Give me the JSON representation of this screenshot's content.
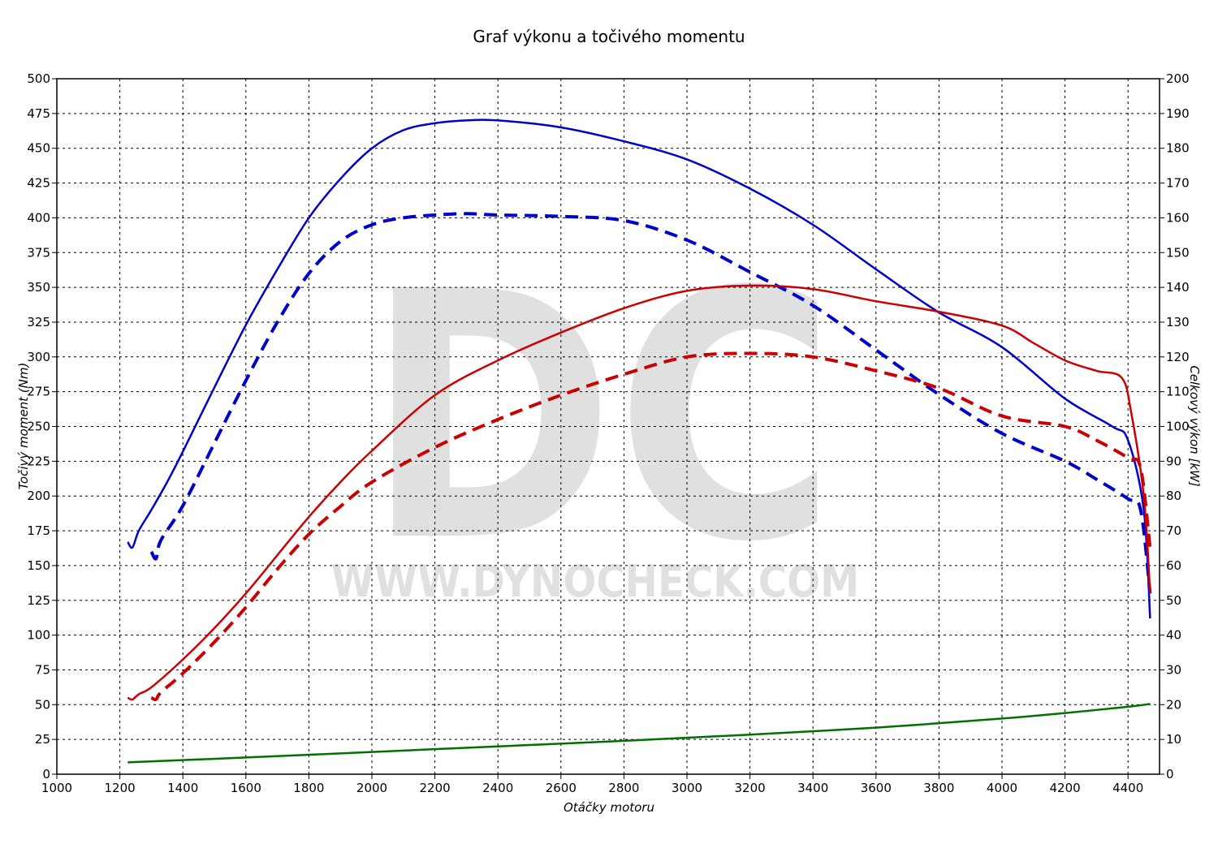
{
  "chart_data": {
    "type": "line",
    "title": "Graf výkonu a točivého momentu",
    "xlabel": "Otáčky motoru",
    "ylabel_left": "Točivý moment (Nm)",
    "ylabel_right": "Celkový výkon [kW]",
    "xlim": [
      1000,
      4500
    ],
    "ylim_left": [
      0,
      500
    ],
    "ylim_right": [
      0,
      200
    ],
    "x_ticks": [
      1000,
      1200,
      1400,
      1600,
      1800,
      2000,
      2200,
      2400,
      2600,
      2800,
      3000,
      3200,
      3400,
      3600,
      3800,
      4000,
      4200,
      4400
    ],
    "y_ticks_left": [
      0,
      25,
      50,
      75,
      100,
      125,
      150,
      175,
      200,
      225,
      250,
      275,
      300,
      325,
      350,
      375,
      400,
      425,
      450,
      475,
      500
    ],
    "y_ticks_right": [
      0,
      10,
      20,
      30,
      40,
      50,
      60,
      70,
      80,
      90,
      100,
      110,
      120,
      130,
      140,
      150,
      160,
      170,
      180,
      190,
      200
    ],
    "grid": true,
    "watermark": {
      "big": "DC",
      "url": "WWW.DYNOCHECK.COM"
    },
    "series": [
      {
        "color": "#0000cc",
        "dashed": false,
        "axis": "left",
        "x": [
          1225,
          1240,
          1260,
          1300,
          1350,
          1400,
          1500,
          1600,
          1700,
          1800,
          1900,
          2000,
          2100,
          2200,
          2300,
          2400,
          2600,
          2800,
          3000,
          3200,
          3400,
          3600,
          3800,
          4000,
          4200,
          4350,
          4400,
          4450,
          4470
        ],
        "y": [
          167,
          163,
          175,
          190,
          210,
          232,
          278,
          323,
          363,
          400,
          428,
          450,
          463,
          468,
          470,
          470,
          465,
          455,
          442,
          421,
          395,
          363,
          332,
          307,
          270,
          250,
          240,
          190,
          112
        ]
      },
      {
        "color": "#0000cc",
        "dashed": true,
        "axis": "left",
        "x": [
          1300,
          1315,
          1330,
          1400,
          1500,
          1600,
          1700,
          1800,
          1900,
          2000,
          2100,
          2200,
          2300,
          2400,
          2600,
          2800,
          3000,
          3200,
          3400,
          3600,
          3800,
          4000,
          4200,
          4300,
          4400,
          4440,
          4470
        ],
        "y": [
          160,
          155,
          168,
          193,
          238,
          283,
          325,
          360,
          383,
          395,
          400,
          402,
          403,
          402,
          401,
          398,
          384,
          361,
          337,
          305,
          273,
          245,
          225,
          212,
          198,
          190,
          130
        ]
      },
      {
        "color": "#cc0000",
        "dashed": false,
        "axis": "right",
        "x": [
          1225,
          1240,
          1260,
          1300,
          1400,
          1500,
          1600,
          1700,
          1800,
          1900,
          2000,
          2200,
          2400,
          2600,
          2800,
          3000,
          3200,
          3400,
          3600,
          3800,
          4000,
          4100,
          4200,
          4300,
          4380,
          4410,
          4450,
          4470
        ],
        "y": [
          22,
          21.5,
          23,
          25,
          33,
          42,
          52,
          63,
          74,
          84,
          93,
          109,
          119,
          127,
          134,
          139,
          140.5,
          139.5,
          136,
          133,
          129,
          124,
          119,
          116,
          114,
          104,
          80,
          52
        ]
      },
      {
        "color": "#cc0000",
        "dashed": true,
        "axis": "right",
        "x": [
          1300,
          1315,
          1330,
          1400,
          1500,
          1600,
          1700,
          1800,
          1900,
          2000,
          2200,
          2400,
          2600,
          2800,
          3000,
          3200,
          3400,
          3600,
          3800,
          4000,
          4200,
          4300,
          4400,
          4440,
          4470
        ],
        "y": [
          22,
          21.5,
          23.5,
          29,
          38,
          48,
          59,
          69,
          77,
          84,
          94,
          102,
          109,
          115,
          120,
          121,
          120,
          116,
          111,
          103,
          100,
          96,
          91,
          88,
          65
        ]
      },
      {
        "color": "#007000",
        "dashed": false,
        "axis": "left",
        "x": [
          1225,
          1600,
          2000,
          2400,
          2800,
          3200,
          3600,
          4000,
          4200,
          4400,
          4470
        ],
        "y": [
          8.5,
          12,
          16,
          20,
          24,
          28.5,
          33.5,
          40,
          44,
          48.5,
          50.5
        ]
      }
    ]
  }
}
